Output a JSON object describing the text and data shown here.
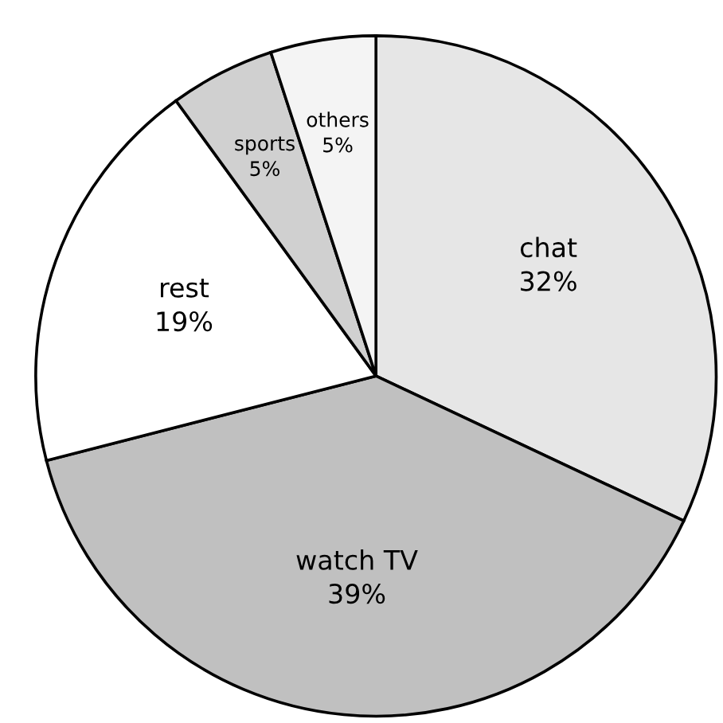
{
  "chart_data": {
    "type": "pie",
    "categories": [
      "chat",
      "watch TV",
      "rest",
      "sports",
      "others"
    ],
    "values": [
      32,
      39,
      19,
      5,
      5
    ],
    "value_labels": [
      "32%",
      "39%",
      "19%",
      "5%",
      "5%"
    ],
    "colors": [
      "#e6e6e6",
      "#c0c0c0",
      "#ffffff",
      "#d0d0d0",
      "#f4f4f4"
    ]
  }
}
